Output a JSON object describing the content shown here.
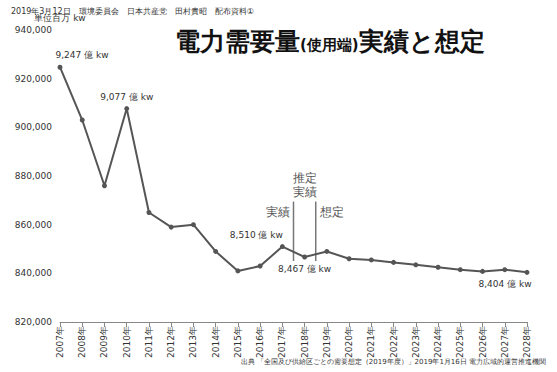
{
  "chart_data": {
    "type": "line",
    "title": "電力需要量(使用端)実績と想定",
    "subtitle": "2019年3月12日　環境委員会　日本共産党　田村貴昭　配布資料①",
    "y_label": "単位百万 kw",
    "source": "出典 「全国及び供給区ごとの需要想定（2019年度）」2019年1月16日 電力広域的運営推進機関",
    "categories": [
      "2007年",
      "2008年",
      "2009年",
      "2010年",
      "2011年",
      "2012年",
      "2013年",
      "2014年",
      "2015年",
      "2016年",
      "2017年",
      "2018年",
      "2019年",
      "2020年",
      "2021年",
      "2022年",
      "2023年",
      "2024年",
      "2025年",
      "2026年",
      "2027年",
      "2028年"
    ],
    "values": [
      924700,
      903000,
      876000,
      907700,
      865000,
      859000,
      860000,
      849000,
      841000,
      843000,
      851000,
      846700,
      849000,
      846000,
      845500,
      844500,
      843500,
      842500,
      841500,
      840800,
      841500,
      840400
    ],
    "value_labels": [
      "9,247 億 kw",
      null,
      null,
      "9,077 億 kw",
      null,
      null,
      null,
      null,
      null,
      null,
      "8,510 億 kw",
      "8,467 億 kw",
      null,
      null,
      null,
      null,
      null,
      null,
      null,
      null,
      null,
      "8,404 億 kw"
    ],
    "color": "#555555",
    "marker": "circle",
    "ylim": [
      820000,
      940000
    ],
    "yticks": [
      {
        "value": 820000,
        "label": "820,000"
      },
      {
        "value": 840000,
        "label": "840,000"
      },
      {
        "value": 860000,
        "label": "860,000"
      },
      {
        "value": 880000,
        "label": "880,000"
      },
      {
        "value": 900000,
        "label": "900,000"
      },
      {
        "value": 920000,
        "label": "920,000"
      },
      {
        "value": 940000,
        "label": "940,000"
      }
    ],
    "grid": false,
    "annotations": {
      "middle_category": "2018年",
      "middle_label": [
        "推定",
        "実績"
      ],
      "left_label": "実績",
      "right_label": "想定"
    }
  }
}
